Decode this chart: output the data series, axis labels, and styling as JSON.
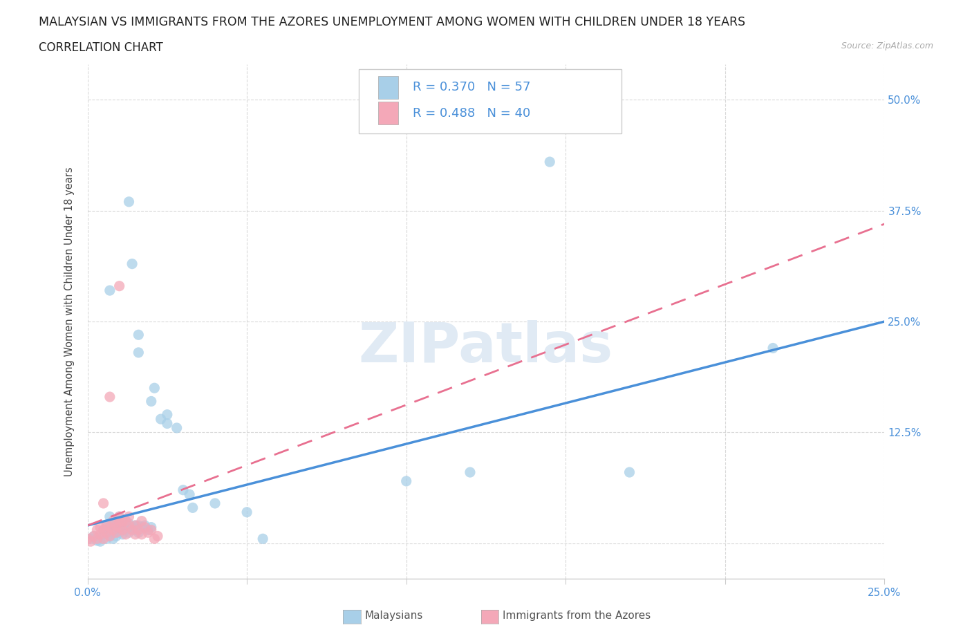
{
  "title_line1": "MALAYSIAN VS IMMIGRANTS FROM THE AZORES UNEMPLOYMENT AMONG WOMEN WITH CHILDREN UNDER 18 YEARS",
  "title_line2": "CORRELATION CHART",
  "source": "Source: ZipAtlas.com",
  "ylabel": "Unemployment Among Women with Children Under 18 years",
  "xlim": [
    0.0,
    0.25
  ],
  "ylim": [
    -0.04,
    0.54
  ],
  "ytick_vals": [
    0.0,
    0.125,
    0.25,
    0.375,
    0.5
  ],
  "ytick_labels": [
    "",
    "12.5%",
    "25.0%",
    "37.5%",
    "50.0%"
  ],
  "xtick_vals": [
    0.0,
    0.05,
    0.1,
    0.15,
    0.2,
    0.25
  ],
  "xtick_labels": [
    "0.0%",
    "",
    "",
    "",
    "",
    "25.0%"
  ],
  "blue_color": "#a8cfe8",
  "pink_color": "#f4a8b8",
  "blue_line_color": "#4a90d9",
  "pink_line_color": "#e87090",
  "background_color": "#ffffff",
  "grid_color": "#d0d0d0",
  "blue_scatter": [
    [
      0.001,
      0.005
    ],
    [
      0.002,
      0.008
    ],
    [
      0.003,
      0.003
    ],
    [
      0.004,
      0.002
    ],
    [
      0.005,
      0.01
    ],
    [
      0.005,
      0.015
    ],
    [
      0.006,
      0.005
    ],
    [
      0.006,
      0.018
    ],
    [
      0.007,
      0.008
    ],
    [
      0.007,
      0.022
    ],
    [
      0.007,
      0.03
    ],
    [
      0.008,
      0.005
    ],
    [
      0.008,
      0.012
    ],
    [
      0.008,
      0.018
    ],
    [
      0.009,
      0.008
    ],
    [
      0.009,
      0.015
    ],
    [
      0.009,
      0.025
    ],
    [
      0.01,
      0.012
    ],
    [
      0.01,
      0.018
    ],
    [
      0.01,
      0.03
    ],
    [
      0.011,
      0.01
    ],
    [
      0.011,
      0.02
    ],
    [
      0.012,
      0.015
    ],
    [
      0.012,
      0.025
    ],
    [
      0.013,
      0.012
    ],
    [
      0.013,
      0.022
    ],
    [
      0.014,
      0.018
    ],
    [
      0.015,
      0.015
    ],
    [
      0.015,
      0.02
    ],
    [
      0.016,
      0.012
    ],
    [
      0.016,
      0.02
    ],
    [
      0.017,
      0.018
    ],
    [
      0.018,
      0.02
    ],
    [
      0.019,
      0.015
    ],
    [
      0.02,
      0.018
    ],
    [
      0.007,
      0.285
    ],
    [
      0.013,
      0.385
    ],
    [
      0.014,
      0.315
    ],
    [
      0.016,
      0.235
    ],
    [
      0.016,
      0.215
    ],
    [
      0.02,
      0.16
    ],
    [
      0.021,
      0.175
    ],
    [
      0.023,
      0.14
    ],
    [
      0.025,
      0.135
    ],
    [
      0.025,
      0.145
    ],
    [
      0.028,
      0.13
    ],
    [
      0.03,
      0.06
    ],
    [
      0.032,
      0.055
    ],
    [
      0.033,
      0.04
    ],
    [
      0.04,
      0.045
    ],
    [
      0.05,
      0.035
    ],
    [
      0.055,
      0.005
    ],
    [
      0.1,
      0.07
    ],
    [
      0.12,
      0.08
    ],
    [
      0.145,
      0.43
    ],
    [
      0.17,
      0.08
    ],
    [
      0.215,
      0.22
    ]
  ],
  "pink_scatter": [
    [
      0.0,
      0.005
    ],
    [
      0.001,
      0.002
    ],
    [
      0.002,
      0.008
    ],
    [
      0.003,
      0.005
    ],
    [
      0.003,
      0.015
    ],
    [
      0.004,
      0.01
    ],
    [
      0.004,
      0.018
    ],
    [
      0.005,
      0.005
    ],
    [
      0.005,
      0.015
    ],
    [
      0.005,
      0.045
    ],
    [
      0.006,
      0.012
    ],
    [
      0.006,
      0.02
    ],
    [
      0.007,
      0.008
    ],
    [
      0.007,
      0.018
    ],
    [
      0.007,
      0.165
    ],
    [
      0.008,
      0.015
    ],
    [
      0.008,
      0.025
    ],
    [
      0.009,
      0.012
    ],
    [
      0.009,
      0.02
    ],
    [
      0.01,
      0.018
    ],
    [
      0.01,
      0.025
    ],
    [
      0.01,
      0.03
    ],
    [
      0.011,
      0.015
    ],
    [
      0.011,
      0.025
    ],
    [
      0.012,
      0.01
    ],
    [
      0.012,
      0.025
    ],
    [
      0.013,
      0.02
    ],
    [
      0.013,
      0.03
    ],
    [
      0.014,
      0.015
    ],
    [
      0.015,
      0.01
    ],
    [
      0.015,
      0.02
    ],
    [
      0.016,
      0.015
    ],
    [
      0.017,
      0.025
    ],
    [
      0.017,
      0.01
    ],
    [
      0.018,
      0.018
    ],
    [
      0.019,
      0.012
    ],
    [
      0.02,
      0.015
    ],
    [
      0.021,
      0.005
    ],
    [
      0.022,
      0.008
    ],
    [
      0.01,
      0.29
    ]
  ]
}
